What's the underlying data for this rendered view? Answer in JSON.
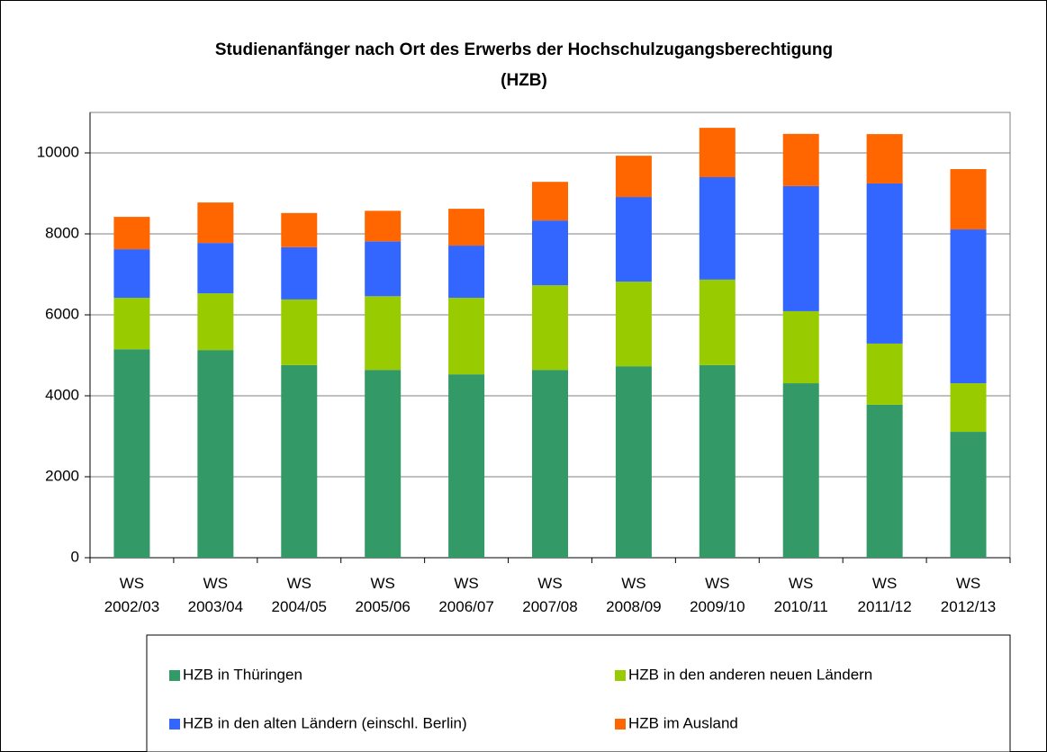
{
  "chart_data": {
    "type": "stacked_bar",
    "title": [
      "Studienanfänger nach Ort des Erwerbs der Hochschulzugangsberechtigung",
      "(HZB)"
    ],
    "categories": [
      "WS 2002/03",
      "WS 2003/04",
      "WS 2004/05",
      "WS 2005/06",
      "WS 2006/07",
      "WS 2007/08",
      "WS 2008/09",
      "WS 2009/10",
      "WS 2010/11",
      "WS 2011/12",
      "WS 2012/13"
    ],
    "series": [
      {
        "name": "HZB in Thüringen",
        "color": "#339966",
        "values": [
          5150,
          5130,
          4760,
          4640,
          4530,
          4640,
          4730,
          4760,
          4310,
          3780,
          3110
        ]
      },
      {
        "name": "HZB in den anderen neuen Ländern",
        "color": "#99cc00",
        "values": [
          1270,
          1400,
          1620,
          1820,
          1890,
          2090,
          2090,
          2110,
          1780,
          1510,
          1200
        ]
      },
      {
        "name": "HZB in den alten Ländern (einschl. Berlin)",
        "color": "#3366ff",
        "values": [
          1200,
          1245,
          1290,
          1355,
          1290,
          1600,
          2090,
          2530,
          3090,
          3955,
          3800
        ]
      },
      {
        "name": "HZB im Ausland",
        "color": "#ff6600",
        "values": [
          800,
          1000,
          845,
          755,
          910,
          955,
          1020,
          1220,
          1290,
          1220,
          1490
        ]
      }
    ],
    "ylim": [
      0,
      11000
    ],
    "yticks": [
      0,
      2000,
      4000,
      6000,
      8000,
      10000
    ],
    "grid": true,
    "legend": "bottom"
  }
}
